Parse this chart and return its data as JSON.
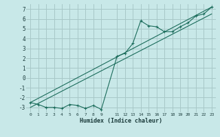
{
  "title": "",
  "xlabel": "Humidex (Indice chaleur)",
  "bg_color": "#c8e8e8",
  "grid_color": "#a8c8c8",
  "line_color": "#1a6b5a",
  "xlim": [
    -0.5,
    23.5
  ],
  "ylim": [
    -3.5,
    7.5
  ],
  "xticks": [
    0,
    1,
    2,
    3,
    4,
    5,
    6,
    7,
    8,
    9,
    11,
    12,
    13,
    14,
    15,
    16,
    17,
    18,
    19,
    20,
    21,
    22,
    23
  ],
  "xtick_labels": [
    "0",
    "1",
    "2",
    "3",
    "4",
    "5",
    "6",
    "7",
    "8",
    "9",
    "11",
    "12",
    "13",
    "14",
    "15",
    "16",
    "17",
    "18",
    "19",
    "20",
    "21",
    "22",
    "23"
  ],
  "yticks": [
    -3,
    -2,
    -1,
    0,
    1,
    2,
    3,
    4,
    5,
    6,
    7
  ],
  "data_line1": {
    "x": [
      0,
      1,
      2,
      3,
      4,
      5,
      6,
      7,
      8,
      9,
      11,
      12,
      13,
      14,
      15,
      16,
      17,
      18,
      19,
      20,
      21,
      22,
      23
    ],
    "y": [
      -2.5,
      -2.7,
      -3.0,
      -3.0,
      -3.1,
      -2.7,
      -2.8,
      -3.1,
      -2.8,
      -3.2,
      2.2,
      2.5,
      3.5,
      5.8,
      5.3,
      5.2,
      4.7,
      4.7,
      5.2,
      5.6,
      6.3,
      6.5,
      7.2
    ]
  },
  "data_line2": {
    "x": [
      0,
      23
    ],
    "y": [
      -2.5,
      7.2
    ]
  },
  "data_line3": {
    "x": [
      0,
      23
    ],
    "y": [
      -3.0,
      6.5
    ]
  }
}
